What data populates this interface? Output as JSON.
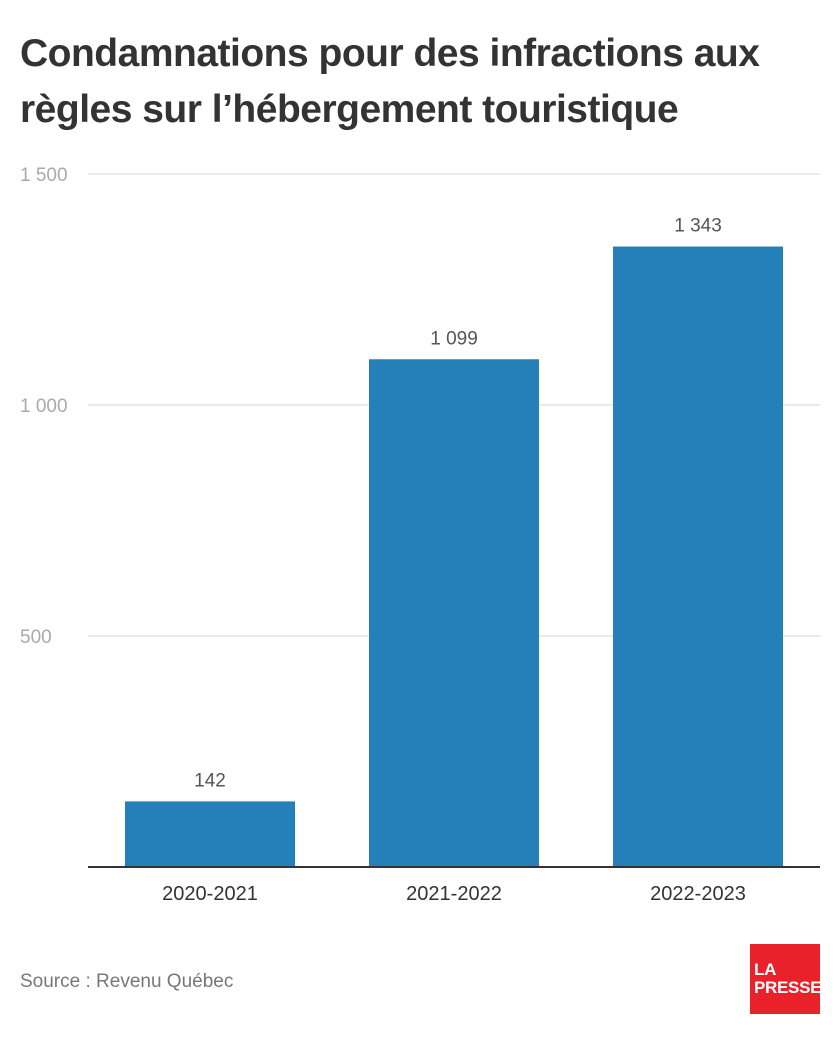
{
  "title": "Condamnations pour des infractions aux règles sur l’hébergement touristique",
  "source": "Source : Revenu Québec",
  "logo": {
    "line1": "LA",
    "line2": "PRESSE",
    "color": "#e8212b"
  },
  "chart_data": {
    "type": "bar",
    "categories": [
      "2020-2021",
      "2021-2022",
      "2022-2023"
    ],
    "values": [
      142,
      1099,
      1343
    ],
    "value_labels": [
      "142",
      "1 099",
      "1 343"
    ],
    "ylim": [
      0,
      1500
    ],
    "yticks": [
      500,
      1000,
      1500
    ],
    "ytick_labels": [
      "500",
      "1 000",
      "1 500"
    ],
    "grid": true,
    "bar_color": "#2380b8"
  }
}
